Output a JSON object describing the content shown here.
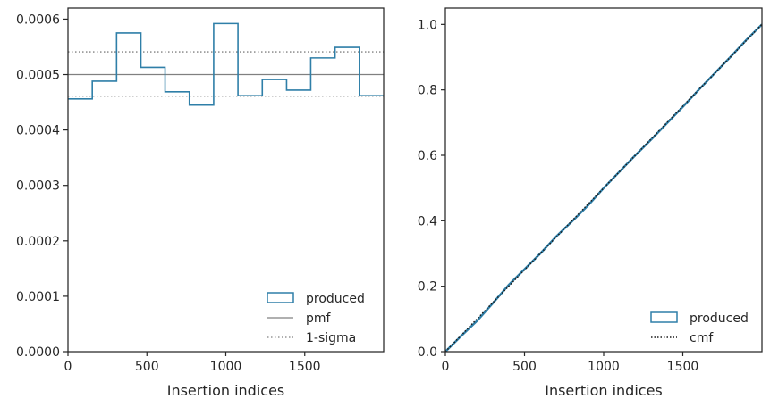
{
  "colors": {
    "produced": "#2f7fa8",
    "pmf": "#808080",
    "sigma": "#808080",
    "cmf": "#1a1a1a",
    "axes": "#262626"
  },
  "chart_data": [
    {
      "type": "line",
      "name": "histogram",
      "xlabel": "Insertion indices",
      "ylabel": "",
      "xlim": [
        0,
        2000
      ],
      "ylim": [
        0,
        0.00062
      ],
      "x_ticks": [
        0,
        500,
        1000,
        1500
      ],
      "x_tick_labels": [
        "0",
        "500",
        "1000",
        "1500"
      ],
      "y_ticks": [
        0,
        0.0001,
        0.0002,
        0.0003,
        0.0004,
        0.0005,
        0.0006
      ],
      "y_tick_labels": [
        "0.0000",
        "0.0001",
        "0.0002",
        "0.0003",
        "0.0004",
        "0.0005",
        "0.0006"
      ],
      "legend_position": "lower-right",
      "bin_edges": [
        0,
        154,
        308,
        462,
        615,
        769,
        923,
        1077,
        1231,
        1385,
        1538,
        1692,
        1846,
        2000
      ],
      "produced": [
        0.000456,
        0.000488,
        0.000575,
        0.000513,
        0.000469,
        0.000445,
        0.000592,
        0.000462,
        0.000491,
        0.000472,
        0.00053,
        0.000549,
        0.000462
      ],
      "pmf": 0.0005,
      "sigma": [
        0.000461,
        0.000541
      ],
      "legend": [
        "produced",
        "pmf",
        "1-sigma"
      ]
    },
    {
      "type": "line",
      "name": "cumulative",
      "xlabel": "Insertion indices",
      "ylabel": "",
      "xlim": [
        0,
        2000
      ],
      "ylim": [
        0,
        1.05
      ],
      "x_ticks": [
        0,
        500,
        1000,
        1500
      ],
      "x_tick_labels": [
        "0",
        "500",
        "1000",
        "1500"
      ],
      "y_ticks": [
        0,
        0.2,
        0.4,
        0.6,
        0.8,
        1.0
      ],
      "y_tick_labels": [
        "0.0",
        "0.2",
        "0.4",
        "0.6",
        "0.8",
        "1.0"
      ],
      "legend_position": "lower-right",
      "produced_points": [
        [
          0,
          0
        ],
        [
          100,
          0.048
        ],
        [
          200,
          0.094
        ],
        [
          300,
          0.148
        ],
        [
          400,
          0.204
        ],
        [
          500,
          0.252
        ],
        [
          600,
          0.3
        ],
        [
          700,
          0.352
        ],
        [
          800,
          0.398
        ],
        [
          900,
          0.446
        ],
        [
          1000,
          0.5
        ],
        [
          1100,
          0.55
        ],
        [
          1200,
          0.6
        ],
        [
          1300,
          0.648
        ],
        [
          1400,
          0.698
        ],
        [
          1500,
          0.748
        ],
        [
          1600,
          0.8
        ],
        [
          1700,
          0.85
        ],
        [
          1800,
          0.9
        ],
        [
          1900,
          0.952
        ],
        [
          2000,
          1.0
        ]
      ],
      "cmf_points": [
        [
          0,
          0
        ],
        [
          2000,
          1.0
        ]
      ],
      "legend": [
        "produced",
        "cmf"
      ]
    }
  ]
}
